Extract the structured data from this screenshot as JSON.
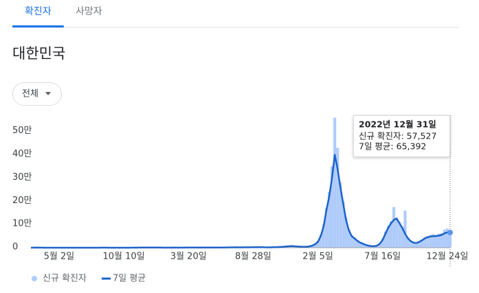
{
  "tabs": [
    {
      "label": "확진자",
      "active": true
    },
    {
      "label": "사망자",
      "active": false
    }
  ],
  "region": "대한민국",
  "filter": "전체",
  "tooltip": {
    "title": "2022년 12월 31일",
    "lines": [
      "신규 확진자: 57,527",
      "7일 평균: 65,392"
    ]
  },
  "chart_data": {
    "type": "combo",
    "categories": [
      null,
      null,
      null,
      null,
      null,
      null,
      null,
      null,
      null,
      null,
      "5월 2일",
      null,
      null,
      null,
      null,
      null,
      null,
      null,
      null,
      null,
      null,
      null,
      null,
      null,
      null,
      null,
      null,
      null,
      null,
      null,
      null,
      null,
      null,
      "10월 10일",
      null,
      null,
      null,
      null,
      null,
      null,
      null,
      null,
      null,
      null,
      null,
      null,
      null,
      null,
      null,
      null,
      null,
      null,
      null,
      null,
      null,
      null,
      "3월 20일",
      null,
      null,
      null,
      null,
      null,
      null,
      null,
      null,
      null,
      null,
      null,
      null,
      null,
      null,
      null,
      null,
      null,
      null,
      null,
      null,
      null,
      null,
      "8월 28일",
      null,
      null,
      null,
      null,
      null,
      null,
      null,
      null,
      null,
      null,
      null,
      null,
      null,
      null,
      null,
      null,
      null,
      null,
      null,
      null,
      null,
      null,
      "2월 5일",
      null,
      null,
      null,
      null,
      null,
      null,
      null,
      null,
      null,
      null,
      null,
      null,
      null,
      null,
      null,
      null,
      null,
      null,
      null,
      null,
      null,
      null,
      "7월 16일",
      null,
      null,
      null,
      null,
      null,
      null,
      null,
      null,
      null,
      null,
      null,
      null,
      null,
      null,
      null,
      null,
      null,
      null,
      null,
      null,
      null,
      null,
      "12월 24일",
      null
    ],
    "series": [
      {
        "name": "신규 확진자",
        "color": "#aecbfa",
        "type": "bar",
        "values": [
          60,
          350,
          550,
          380,
          160,
          90,
          80,
          60,
          30,
          15,
          10,
          20,
          30,
          40,
          40,
          45,
          50,
          50,
          45,
          40,
          35,
          45,
          50,
          40,
          50,
          280,
          300,
          150,
          120,
          90,
          70,
          70,
          80,
          90,
          100,
          130,
          200,
          300,
          400,
          500,
          600,
          800,
          1000,
          1000,
          900,
          700,
          500,
          400,
          400,
          350,
          400,
          450,
          400,
          420,
          430,
          450,
          480,
          550,
          600,
          650,
          650,
          600,
          580,
          550,
          550,
          500,
          500,
          600,
          800,
          1100,
          1300,
          1500,
          1600,
          1700,
          1500,
          1600,
          1800,
          1900,
          1800,
          2000,
          2500,
          2700,
          2400,
          1800,
          1600,
          1500,
          2000,
          2500,
          3000,
          3600,
          4500,
          5500,
          6500,
          7000,
          6000,
          5000,
          4500,
          4000,
          4200,
          6000,
          9000,
          15000,
          28000,
          55000,
          100000,
          170000,
          240000,
          350000,
          560000,
          430000,
          280000,
          200000,
          130000,
          80000,
          55000,
          45000,
          33000,
          25000,
          18000,
          13000,
          9500,
          7500,
          7000,
          10000,
          19000,
          38000,
          70000,
          95000,
          115000,
          175000,
          130000,
          110000,
          90000,
          160000,
          45000,
          30000,
          25000,
          22000,
          28000,
          35000,
          45000,
          50000,
          55000,
          58000,
          55000,
          60000,
          62000,
          78000,
          82000,
          57527
        ]
      },
      {
        "name": "7일 평균",
        "color": "#1c62c9",
        "type": "line",
        "values": [
          50,
          300,
          500,
          400,
          150,
          100,
          80,
          60,
          30,
          15,
          10,
          20,
          30,
          40,
          40,
          45,
          50,
          50,
          45,
          40,
          35,
          45,
          50,
          40,
          50,
          250,
          300,
          150,
          120,
          90,
          70,
          70,
          80,
          90,
          100,
          130,
          200,
          300,
          400,
          500,
          600,
          800,
          1000,
          1000,
          900,
          700,
          500,
          400,
          400,
          350,
          400,
          450,
          400,
          420,
          430,
          450,
          480,
          550,
          600,
          650,
          650,
          600,
          580,
          550,
          550,
          500,
          500,
          600,
          800,
          1100,
          1300,
          1500,
          1600,
          1700,
          1500,
          1600,
          1800,
          1900,
          1800,
          2000,
          2500,
          2700,
          2400,
          1800,
          1600,
          1500,
          2000,
          2500,
          3000,
          3600,
          4500,
          5500,
          6500,
          7000,
          6000,
          5000,
          4500,
          4000,
          4200,
          6000,
          9000,
          15000,
          25000,
          50000,
          90000,
          160000,
          220000,
          300000,
          400000,
          340000,
          260000,
          190000,
          120000,
          75000,
          50000,
          40000,
          30000,
          22000,
          17000,
          12000,
          9000,
          7000,
          6500,
          9000,
          17000,
          33000,
          60000,
          85000,
          105000,
          120000,
          125000,
          105000,
          85000,
          60000,
          40000,
          28000,
          22000,
          20000,
          25000,
          32000,
          40000,
          45000,
          48000,
          50000,
          50000,
          52000,
          55000,
          62000,
          66000,
          65392
        ]
      }
    ],
    "ylim": [
      0,
      570000
    ],
    "yticks": [
      0,
      {
        "value": 100000,
        "label": "10만"
      },
      {
        "value": 200000,
        "label": "20만"
      },
      {
        "value": 300000,
        "label": "30만"
      },
      {
        "value": 400000,
        "label": "40만"
      },
      {
        "value": 500000,
        "label": "50만"
      }
    ],
    "grid": false
  }
}
